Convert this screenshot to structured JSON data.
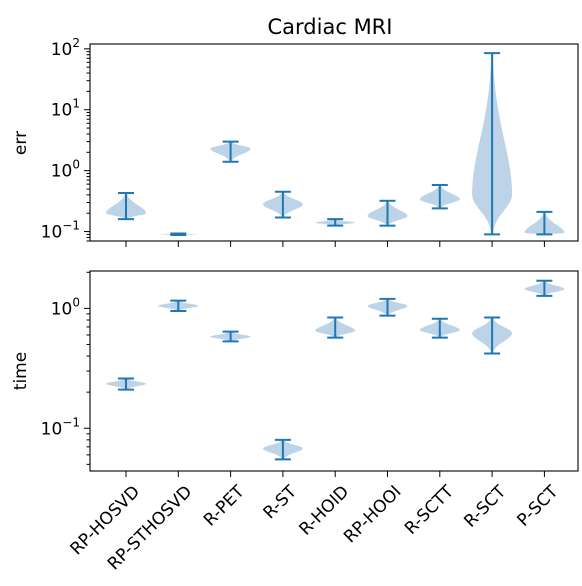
{
  "chart_data": [
    {
      "type": "violin",
      "title": "Cardiac MRI",
      "ylabel": "err",
      "yscale": "log",
      "ylim": [
        0.07,
        120
      ],
      "yticks": [
        {
          "base": "10",
          "exp": "2"
        },
        {
          "base": "10",
          "exp": "1"
        },
        {
          "base": "10",
          "exp": "0"
        },
        {
          "base": "10",
          "exp": "−1"
        }
      ],
      "categories": [
        "RP-HOSVD",
        "RP-STHOSVD",
        "R-PET",
        "R-ST",
        "R-HOID",
        "RP-HOOI",
        "R-SCTT",
        "R-SCT",
        "P-SCT"
      ],
      "distributions": [
        {
          "min": 0.16,
          "max": 0.43,
          "peak": 0.2
        },
        {
          "min": 0.088,
          "max": 0.093,
          "peak": 0.09
        },
        {
          "min": 1.4,
          "max": 3.0,
          "peak": 2.3
        },
        {
          "min": 0.17,
          "max": 0.45,
          "peak": 0.28
        },
        {
          "min": 0.125,
          "max": 0.16,
          "peak": 0.14
        },
        {
          "min": 0.125,
          "max": 0.32,
          "peak": 0.18
        },
        {
          "min": 0.24,
          "max": 0.58,
          "peak": 0.34
        },
        {
          "min": 0.09,
          "max": 85,
          "peak": 0.4
        },
        {
          "min": 0.09,
          "max": 0.21,
          "peak": 0.095
        }
      ],
      "colors": {
        "line": "#1f77b4",
        "fill": "#b9d1e6"
      }
    },
    {
      "type": "violin",
      "ylabel": "time",
      "yscale": "log",
      "ylim": [
        0.044,
        2.05
      ],
      "yticks": [
        {
          "base": "10",
          "exp": "0"
        },
        {
          "base": "10",
          "exp": "−1"
        }
      ],
      "categories": [
        "RP-HOSVD",
        "RP-STHOSVD",
        "R-PET",
        "R-ST",
        "R-HOID",
        "RP-HOOI",
        "R-SCTT",
        "R-SCT",
        "P-SCT"
      ],
      "distributions": [
        {
          "min": 0.21,
          "max": 0.26,
          "peak": 0.235
        },
        {
          "min": 0.95,
          "max": 1.16,
          "peak": 1.05
        },
        {
          "min": 0.53,
          "max": 0.64,
          "peak": 0.58
        },
        {
          "min": 0.055,
          "max": 0.08,
          "peak": 0.068
        },
        {
          "min": 0.57,
          "max": 0.84,
          "peak": 0.65
        },
        {
          "min": 0.87,
          "max": 1.2,
          "peak": 1.05
        },
        {
          "min": 0.57,
          "max": 0.82,
          "peak": 0.66
        },
        {
          "min": 0.42,
          "max": 0.84,
          "peak": 0.62
        },
        {
          "min": 1.27,
          "max": 1.7,
          "peak": 1.45
        }
      ],
      "colors": {
        "line": "#1f77b4",
        "fill": "#b9d1e6"
      }
    }
  ]
}
